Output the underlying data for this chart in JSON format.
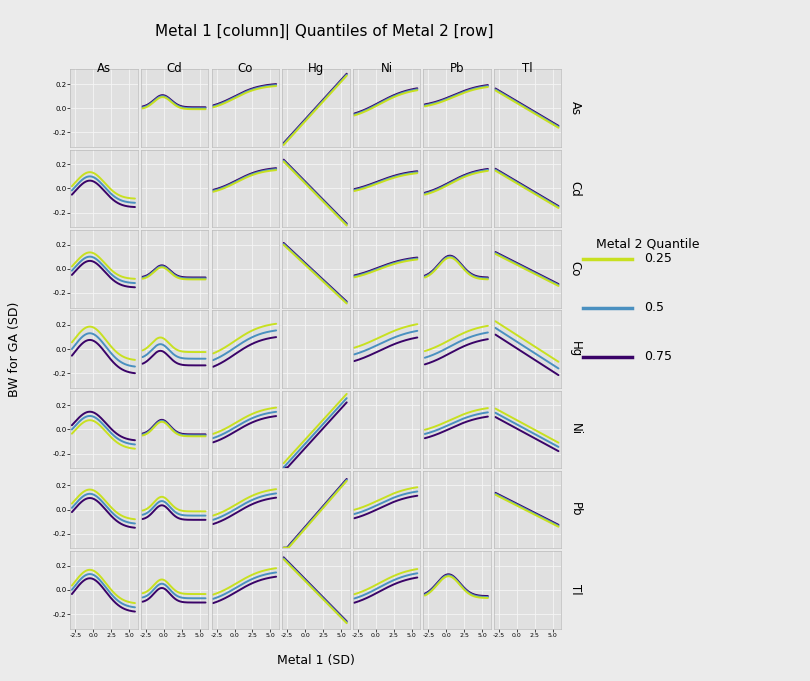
{
  "title": "Metal 1 [column]| Quantiles of Metal 2 [row]",
  "metals": [
    "As",
    "Cd",
    "Co",
    "Hg",
    "Ni",
    "Pb",
    "Tl"
  ],
  "q_colors": [
    "#c8e020",
    "#4a90c0",
    "#3a0368"
  ],
  "q_labels": [
    "0.25",
    "0.5",
    "0.75"
  ],
  "xlim": [
    -3.2,
    6.2
  ],
  "ylim": [
    -0.32,
    0.32
  ],
  "yticks": [
    -0.2,
    0.0,
    0.2
  ],
  "xtick_vals": [
    -2.5,
    0.0,
    2.5,
    5.0
  ],
  "xtick_labels": [
    "-2.5",
    "0.0",
    "2.5",
    "5.0"
  ],
  "xlabel": "Metal 1 (SD)",
  "ylabel": "BW for GA (SD)",
  "fig_bg": "#ebebeb",
  "panel_bg": "#e0e0e0",
  "grid_color": "#f5f5f5",
  "header_bg": "#d3d3d3",
  "legend_title": "Metal 2 Quantile"
}
